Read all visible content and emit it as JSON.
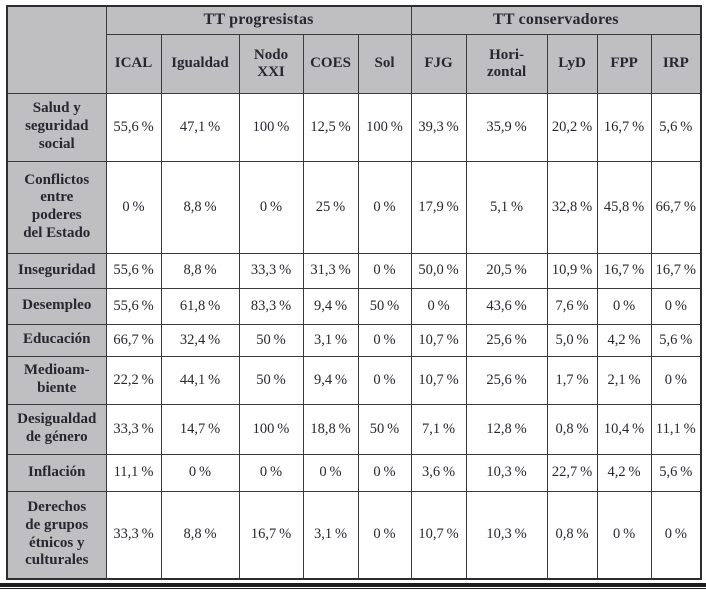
{
  "table": {
    "group_headers": [
      {
        "label": "TT progresistas",
        "span": 5
      },
      {
        "label": "TT conservadores",
        "span": 5
      }
    ],
    "column_headers": [
      "ICAL",
      "Igualdad",
      "Nodo\nXXI",
      "COES",
      "Sol",
      "FJG",
      "Hori-\nzontal",
      "LyD",
      "FPP",
      "IRP"
    ],
    "rows": [
      {
        "label": "Salud y\nseguridad\nsocial",
        "values": [
          "55,6 %",
          "47,1 %",
          "100 %",
          "12,5 %",
          "100 %",
          "39,3 %",
          "35,9 %",
          "20,2 %",
          "16,7 %",
          "5,6 %"
        ]
      },
      {
        "label": "Conflictos\nentre\npoderes\ndel Estado",
        "values": [
          "0 %",
          "8,8 %",
          "0 %",
          "25 %",
          "0 %",
          "17,9 %",
          "5,1 %",
          "32,8 %",
          "45,8 %",
          "66,7 %"
        ]
      },
      {
        "label": "Inseguridad",
        "values": [
          "55,6 %",
          "8,8 %",
          "33,3 %",
          "31,3 %",
          "0 %",
          "50,0 %",
          "20,5 %",
          "10,9 %",
          "16,7 %",
          "16,7 %"
        ]
      },
      {
        "label": "Desempleo",
        "values": [
          "55,6 %",
          "61,8 %",
          "83,3 %",
          "9,4 %",
          "50 %",
          "0 %",
          "43,6 %",
          "7,6 %",
          "0 %",
          "0 %"
        ]
      },
      {
        "label": "Educación",
        "values": [
          "66,7 %",
          "32,4 %",
          "50 %",
          "3,1 %",
          "0 %",
          "10,7 %",
          "25,6 %",
          "5,0 %",
          "4,2 %",
          "5,6 %"
        ]
      },
      {
        "label": "Medioam-\nbiente",
        "values": [
          "22,2 %",
          "44,1 %",
          "50 %",
          "9,4 %",
          "0 %",
          "10,7 %",
          "25,6 %",
          "1,7 %",
          "2,1 %",
          "0 %"
        ]
      },
      {
        "label": "Desigualdad\nde género",
        "values": [
          "33,3 %",
          "14,7 %",
          "100 %",
          "18,8 %",
          "50 %",
          "7,1 %",
          "12,8 %",
          "0,8 %",
          "10,4 %",
          "11,1 %"
        ]
      },
      {
        "label": "Inflación",
        "values": [
          "11,1 %",
          "0 %",
          "0 %",
          "0 %",
          "0 %",
          "3,6 %",
          "10,3 %",
          "22,7 %",
          "4,2 %",
          "5,6 %"
        ]
      },
      {
        "label": "Derechos\nde grupos\nétnicos y\nculturales",
        "values": [
          "33,3 %",
          "8,8 %",
          "16,7 %",
          "3,1 %",
          "0 %",
          "10,7 %",
          "10,3 %",
          "0,8 %",
          "0 %",
          "0 %"
        ]
      }
    ]
  },
  "colors": {
    "header_bg": "#bfbfc1",
    "border": "#3a3a3d",
    "outer_border": "#2e2e31",
    "text": "#27272f",
    "bottom_rule": "#1c1c1e"
  }
}
